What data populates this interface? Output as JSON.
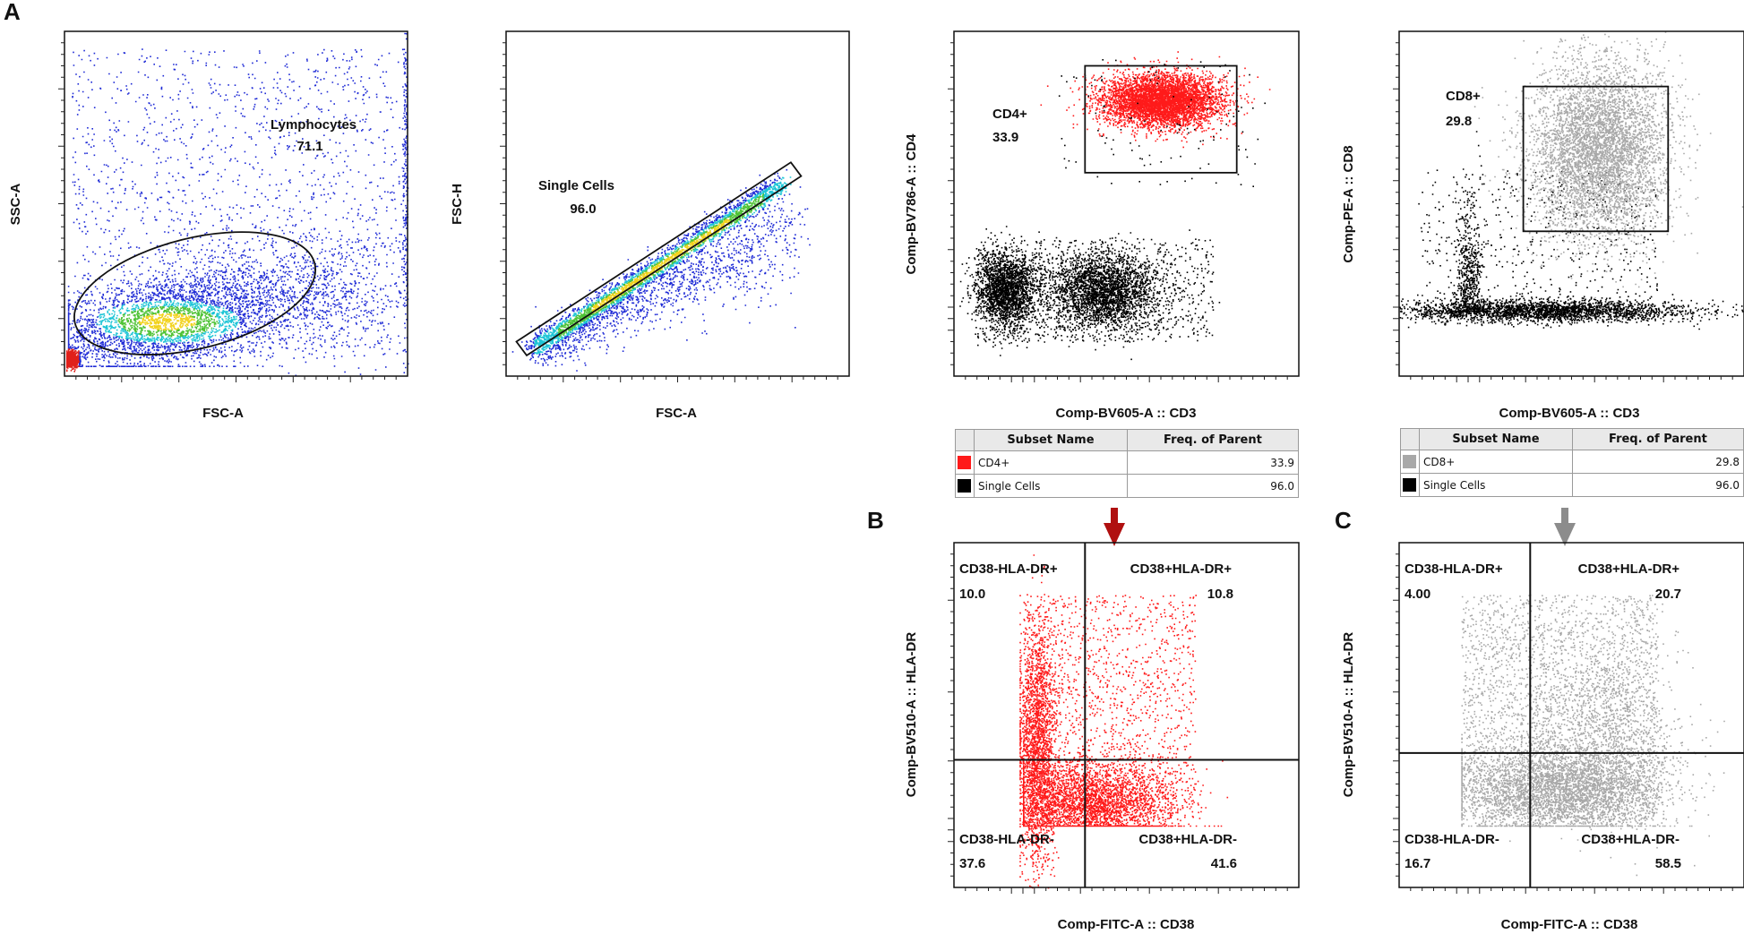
{
  "panel_letters": {
    "a": "A",
    "b": "B",
    "c": "C"
  },
  "colors": {
    "cd4": "#ff1a1a",
    "cd8": "#a8a8a8",
    "gate": "#111111",
    "arrow_b": "#b01010",
    "arrow_c": "#8c8c8c"
  },
  "chart_data": [
    {
      "id": "p1",
      "type": "scatter",
      "title": "",
      "xlabel": "FSC-A",
      "ylabel": "SSC-A",
      "xlim": [
        0,
        100
      ],
      "ylim": [
        0,
        100
      ],
      "gates": [
        {
          "name": "Lymphocytes",
          "value": "71.1",
          "shape": "ellipse",
          "center": [
            38,
            24
          ],
          "radii": [
            36,
            16
          ],
          "angle": -14
        }
      ]
    },
    {
      "id": "p2",
      "type": "scatter",
      "title": "",
      "xlabel": "FSC-A",
      "ylabel": "FSC-H",
      "xlim": [
        0,
        100
      ],
      "ylim": [
        0,
        100
      ],
      "gates": [
        {
          "name": "Single Cells",
          "value": "96.0",
          "shape": "polygon",
          "vertices": [
            [
              3,
              10
            ],
            [
              83,
              62
            ],
            [
              86,
              58
            ],
            [
              6,
              6
            ]
          ]
        }
      ]
    },
    {
      "id": "p3",
      "type": "scatter",
      "title": "",
      "xlabel": "Comp-BV605-A :: CD3",
      "ylabel": "Comp-BV786-A :: CD4",
      "xlim": [
        0,
        100
      ],
      "ylim": [
        0,
        100
      ],
      "gates": [
        {
          "name": "CD4+",
          "value": "33.9",
          "shape": "rect",
          "x": [
            38,
            82
          ],
          "y": [
            59,
            90
          ]
        }
      ]
    },
    {
      "id": "p4",
      "type": "scatter",
      "title": "",
      "xlabel": "Comp-BV605-A :: CD3",
      "ylabel": "Comp-PE-A :: CD8",
      "xlim": [
        0,
        100
      ],
      "ylim": [
        0,
        100
      ],
      "gates": [
        {
          "name": "CD8+",
          "value": "29.8",
          "shape": "rect",
          "x": [
            36,
            78
          ],
          "y": [
            42,
            84
          ]
        }
      ]
    },
    {
      "id": "p5",
      "type": "scatter",
      "title": "",
      "xlabel": "Comp-FITC-A :: CD38",
      "ylabel": "Comp-BV510-A :: HLA-DR",
      "xlim": [
        0,
        100
      ],
      "ylim": [
        0,
        100
      ],
      "quadrant_split": [
        38,
        37
      ],
      "quadrants": [
        {
          "name": "CD38-HLA-DR+",
          "value": "10.0"
        },
        {
          "name": "CD38+HLA-DR+",
          "value": "10.8"
        },
        {
          "name": "CD38-HLA-DR-",
          "value": "37.6"
        },
        {
          "name": "CD38+HLA-DR-",
          "value": "41.6"
        }
      ]
    },
    {
      "id": "p6",
      "type": "scatter",
      "title": "",
      "xlabel": "Comp-FITC-A :: CD38",
      "ylabel": "Comp-BV510-A :: HLA-DR",
      "xlim": [
        0,
        100
      ],
      "ylim": [
        0,
        100
      ],
      "quadrant_split": [
        38,
        39
      ],
      "quadrants": [
        {
          "name": "CD38-HLA-DR+",
          "value": "4.00"
        },
        {
          "name": "CD38+HLA-DR+",
          "value": "20.7"
        },
        {
          "name": "CD38-HLA-DR-",
          "value": "16.7"
        },
        {
          "name": "CD38+HLA-DR-",
          "value": "58.5"
        }
      ]
    }
  ],
  "tables": [
    {
      "headers": [
        "Subset Name",
        "Freq. of Parent"
      ],
      "rows": [
        {
          "swatch": "#ff1a1a",
          "name": "CD4+",
          "freq": "33.9"
        },
        {
          "swatch": "#000000",
          "name": "Single Cells",
          "freq": "96.0"
        }
      ]
    },
    {
      "headers": [
        "Subset Name",
        "Freq. of Parent"
      ],
      "rows": [
        {
          "swatch": "#a8a8a8",
          "name": "CD8+",
          "freq": "29.8"
        },
        {
          "swatch": "#000000",
          "name": "Single Cells",
          "freq": "96.0"
        }
      ]
    }
  ]
}
